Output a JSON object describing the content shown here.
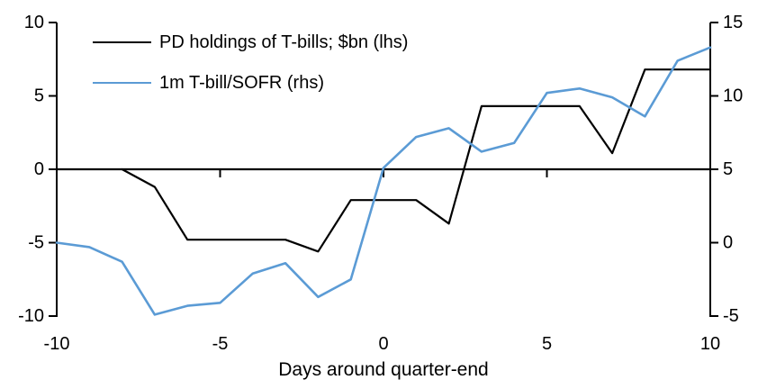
{
  "chart_data": {
    "type": "line",
    "title": "",
    "xlabel": "Days around quarter-end",
    "ylabel_left": "",
    "ylabel_right": "",
    "grid": false,
    "legend_position": "top-left",
    "xlim": [
      -10,
      10
    ],
    "x_ticks": [
      -10,
      -5,
      0,
      5,
      10
    ],
    "left_axis": {
      "ticks": [
        10,
        5,
        0,
        -5,
        -10
      ],
      "range": [
        -10,
        10
      ]
    },
    "right_axis": {
      "ticks": [
        15,
        10,
        5,
        0,
        -5
      ],
      "range": [
        -5,
        15
      ]
    },
    "axis_color": "#000000",
    "series": [
      {
        "name": "PD holdings of T-bills; $bn (lhs)",
        "axis": "left",
        "color": "#000000",
        "stroke_width": 2.2,
        "x": [
          -8,
          -7,
          -6,
          -5,
          -4,
          -3,
          -2,
          -1,
          0,
          1,
          2,
          3,
          4,
          5,
          6,
          7,
          8,
          9,
          10
        ],
        "values": [
          0.0,
          -1.2,
          -4.8,
          -4.8,
          -4.8,
          -4.8,
          -5.6,
          -2.1,
          -2.1,
          -2.1,
          -3.7,
          4.3,
          4.3,
          4.3,
          4.3,
          1.1,
          6.8,
          6.8,
          6.8
        ]
      },
      {
        "name": "1m T-bill/SOFR (rhs)",
        "axis": "right",
        "color": "#5B9BD5",
        "stroke_width": 2.6,
        "x": [
          -10,
          -9,
          -8,
          -7,
          -6,
          -5,
          -4,
          -3,
          -2,
          -1,
          0,
          1,
          2,
          3,
          4,
          5,
          6,
          7,
          8,
          9,
          10
        ],
        "values": [
          0.0,
          -0.3,
          -1.3,
          -4.9,
          -4.3,
          -4.1,
          -2.1,
          -1.4,
          -3.7,
          -2.5,
          5.1,
          7.2,
          7.8,
          6.2,
          6.8,
          10.2,
          10.5,
          9.9,
          8.6,
          12.4,
          13.3
        ]
      }
    ]
  }
}
